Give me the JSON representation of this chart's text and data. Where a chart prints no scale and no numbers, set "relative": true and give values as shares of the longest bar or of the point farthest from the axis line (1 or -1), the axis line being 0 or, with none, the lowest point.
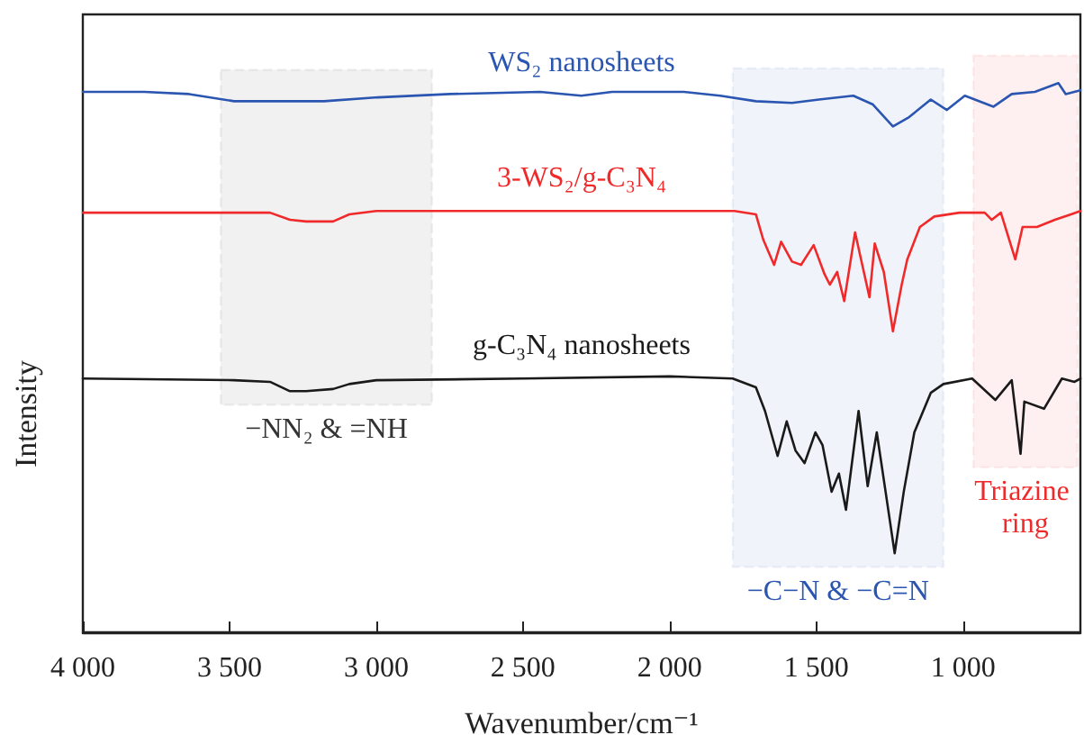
{
  "chart_data": {
    "type": "line",
    "relative": true,
    "xlabel": "Wavenumber/cm⁻¹",
    "ylabel": "Intensity",
    "xlim": [
      4000,
      600
    ],
    "xticks": [
      {
        "value": 4000,
        "label": "4 000"
      },
      {
        "value": 3500,
        "label": "3 500"
      },
      {
        "value": 3000,
        "label": "3 000"
      },
      {
        "value": 2500,
        "label": "2 500"
      },
      {
        "value": 2000,
        "label": "2 000"
      },
      {
        "value": 1500,
        "label": "1 500"
      },
      {
        "value": 1000,
        "label": "1 000"
      }
    ],
    "grid": false,
    "legend": false,
    "marker": "none",
    "line_style": "solid",
    "series": [
      {
        "name": "WS₂ nanosheets",
        "color": "#2a55b0",
        "x": [
          4000,
          3791,
          3638,
          3485,
          3178,
          2994,
          2748,
          2442,
          2301,
          2196,
          1951,
          1828,
          1706,
          1583,
          1491,
          1374,
          1307,
          1239,
          1184,
          1110,
          1055,
          994,
          896,
          834,
          755,
          675,
          650,
          600
        ],
        "values": [
          0.984,
          0.984,
          0.98,
          0.967,
          0.967,
          0.974,
          0.98,
          0.984,
          0.977,
          0.984,
          0.984,
          0.977,
          0.967,
          0.964,
          0.97,
          0.977,
          0.961,
          0.921,
          0.938,
          0.97,
          0.951,
          0.977,
          0.957,
          0.98,
          0.984,
          1.0,
          0.98,
          0.987
        ]
      },
      {
        "name": "3-WS₂/g-C₃N₄",
        "color": "#f02a2a",
        "x": [
          4000,
          3485,
          3362,
          3294,
          3239,
          3147,
          3092,
          3000,
          2500,
          2000,
          1779,
          1706,
          1681,
          1644,
          1620,
          1583,
          1552,
          1509,
          1472,
          1454,
          1429,
          1405,
          1368,
          1319,
          1301,
          1270,
          1239,
          1209,
          1190,
          1147,
          1098,
          1012,
          926,
          902,
          871,
          822,
          797,
          748,
          687,
          632,
          600
        ],
        "values": [
          0.764,
          0.764,
          0.764,
          0.751,
          0.748,
          0.748,
          0.761,
          0.767,
          0.767,
          0.767,
          0.767,
          0.761,
          0.715,
          0.669,
          0.711,
          0.675,
          0.669,
          0.705,
          0.652,
          0.633,
          0.656,
          0.603,
          0.728,
          0.61,
          0.708,
          0.656,
          0.548,
          0.633,
          0.679,
          0.738,
          0.757,
          0.764,
          0.764,
          0.751,
          0.764,
          0.679,
          0.738,
          0.738,
          0.751,
          0.761,
          0.767
        ]
      },
      {
        "name": "g-C₃N₄ nanosheets",
        "color": "#1a1a1a",
        "x": [
          4000,
          3485,
          3362,
          3294,
          3239,
          3147,
          3092,
          3000,
          2500,
          2000,
          1785,
          1706,
          1675,
          1632,
          1601,
          1571,
          1540,
          1503,
          1479,
          1448,
          1423,
          1399,
          1356,
          1325,
          1294,
          1264,
          1233,
          1202,
          1166,
          1110,
          1067,
          969,
          890,
          834,
          804,
          791,
          724,
          663,
          620,
          600
        ],
        "values": [
          0.462,
          0.459,
          0.456,
          0.439,
          0.439,
          0.443,
          0.452,
          0.459,
          0.462,
          0.466,
          0.462,
          0.446,
          0.403,
          0.321,
          0.384,
          0.331,
          0.308,
          0.364,
          0.341,
          0.256,
          0.289,
          0.223,
          0.403,
          0.266,
          0.364,
          0.256,
          0.144,
          0.256,
          0.364,
          0.436,
          0.452,
          0.462,
          0.423,
          0.459,
          0.325,
          0.42,
          0.407,
          0.462,
          0.456,
          0.462
        ]
      }
    ],
    "bands": [
      {
        "axis": "x",
        "from": 3530,
        "to": 2810,
        "label": "−NN₂ & =NH",
        "color": "#333333"
      },
      {
        "axis": "x",
        "from": 1785,
        "to": 1067,
        "label": "−C−N & −C=N",
        "color": "#2a55b0"
      },
      {
        "axis": "x",
        "from": 965,
        "to": 610,
        "label": "Triazine ring",
        "color": "#f02a2a"
      }
    ]
  }
}
